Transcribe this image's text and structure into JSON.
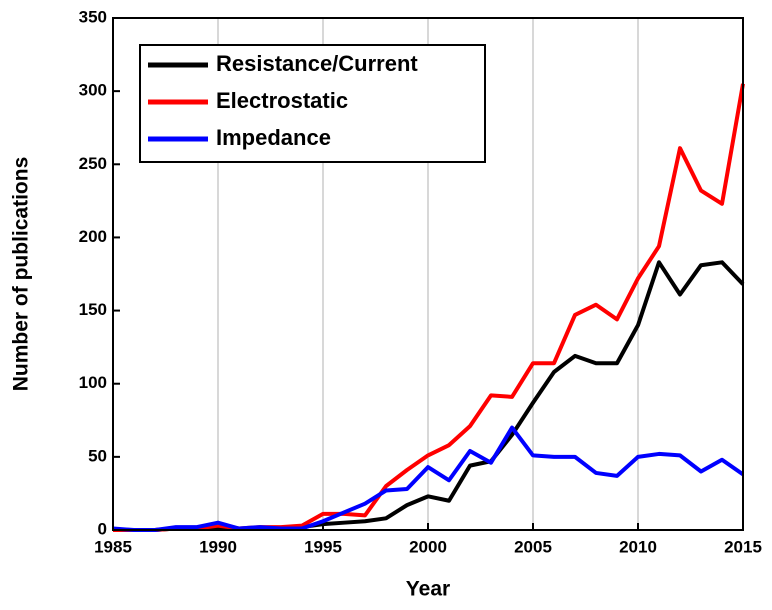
{
  "chart_data": {
    "type": "line",
    "xlabel": "Year",
    "ylabel": "Number of publications",
    "x": [
      1985,
      1986,
      1987,
      1988,
      1989,
      1990,
      1991,
      1992,
      1993,
      1994,
      1995,
      1996,
      1997,
      1998,
      1999,
      2000,
      2001,
      2002,
      2003,
      2004,
      2005,
      2006,
      2007,
      2008,
      2009,
      2010,
      2011,
      2012,
      2013,
      2014,
      2015
    ],
    "series": [
      {
        "name": "Resistance/Current",
        "color": "#000000",
        "values": [
          0,
          0,
          0,
          1,
          1,
          2,
          1,
          1,
          1,
          2,
          4,
          5,
          6,
          8,
          17,
          23,
          20,
          44,
          47,
          65,
          87,
          108,
          119,
          114,
          114,
          140,
          183,
          161,
          181,
          183,
          168
        ]
      },
      {
        "name": "Electrostatic",
        "color": "#ff0000",
        "values": [
          0,
          0,
          0,
          1,
          1,
          3,
          1,
          2,
          2,
          3,
          11,
          11,
          10,
          30,
          41,
          51,
          58,
          71,
          92,
          91,
          114,
          114,
          147,
          154,
          144,
          172,
          194,
          261,
          232,
          223,
          305
        ]
      },
      {
        "name": "Impedance",
        "color": "#0000ff",
        "values": [
          1,
          0,
          0,
          2,
          2,
          5,
          1,
          2,
          1,
          1,
          6,
          12,
          18,
          27,
          28,
          43,
          34,
          54,
          46,
          70,
          51,
          50,
          50,
          39,
          37,
          50,
          52,
          51,
          40,
          48,
          38
        ]
      }
    ],
    "xlim": [
      1985,
      2015
    ],
    "xticks": [
      1985,
      1990,
      1995,
      2000,
      2005,
      2010,
      2015
    ],
    "ylim": [
      0,
      350
    ],
    "yticks": [
      0,
      50,
      100,
      150,
      200,
      250,
      300,
      350
    ],
    "grid": "x",
    "legend": "upper left"
  }
}
